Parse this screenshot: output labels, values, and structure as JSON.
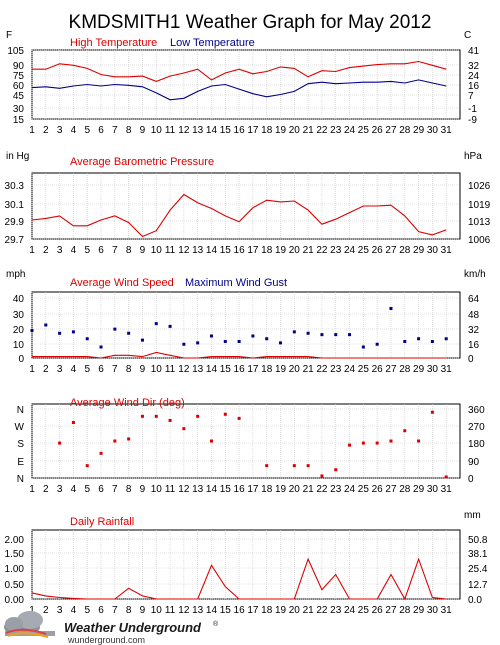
{
  "title": "KMDSMITH1 Weather Graph for May 2012",
  "footer": {
    "brand": "Weather Underground",
    "reg": "®",
    "site": "wunderground.com"
  },
  "days": [
    1,
    2,
    3,
    4,
    5,
    6,
    7,
    8,
    9,
    10,
    11,
    12,
    13,
    14,
    15,
    16,
    17,
    18,
    19,
    20,
    21,
    22,
    23,
    24,
    25,
    26,
    27,
    28,
    29,
    30,
    31
  ],
  "chart_data": [
    {
      "type": "line",
      "title": "",
      "left_unit": "F",
      "right_unit": "C",
      "yticks_left": [
        "105",
        "90",
        "75",
        "60",
        "45",
        "30",
        "15"
      ],
      "yticks_right": [
        "41",
        "32",
        "24",
        "16",
        "7",
        "-1",
        "-9"
      ],
      "ylim": [
        15,
        105
      ],
      "series": [
        {
          "name": "High Temperature",
          "color": "#dd0000",
          "values": [
            80,
            80,
            87,
            85,
            81,
            73,
            70,
            70,
            71,
            64,
            71,
            75,
            80,
            66,
            75,
            80,
            74,
            77,
            83,
            81,
            70,
            78,
            77,
            82,
            84,
            86,
            87,
            87,
            90,
            85,
            80
          ]
        },
        {
          "name": "Low Temperature",
          "color": "#000088",
          "values": [
            56,
            57,
            55,
            58,
            60,
            58,
            60,
            59,
            57,
            49,
            40,
            42,
            51,
            58,
            60,
            54,
            48,
            44,
            47,
            51,
            61,
            63,
            61,
            62,
            63,
            63,
            64,
            62,
            66,
            62,
            58
          ]
        }
      ]
    },
    {
      "type": "line",
      "title": "",
      "left_unit": "in Hg",
      "right_unit": "hPa",
      "yticks_left": [
        "30.3",
        "30.1",
        "29.9",
        "29.7"
      ],
      "yticks_right": [
        "1026",
        "1019",
        "1013",
        "1006"
      ],
      "ylim": [
        29.7,
        30.5
      ],
      "series": [
        {
          "name": "Average Barometric Pressure",
          "color": "#dd0000",
          "values": [
            29.93,
            29.95,
            29.98,
            29.86,
            29.86,
            29.93,
            29.98,
            29.9,
            29.73,
            29.8,
            30.05,
            30.24,
            30.14,
            30.07,
            29.98,
            29.91,
            30.08,
            30.17,
            30.15,
            30.16,
            30.05,
            29.88,
            29.94,
            30.02,
            30.1,
            30.1,
            30.11,
            29.98,
            29.79,
            29.75,
            29.81
          ]
        }
      ]
    },
    {
      "type": "scatter",
      "title": "",
      "left_unit": "mph",
      "right_unit": "km/h",
      "yticks_left": [
        "40",
        "30",
        "20",
        "10",
        "0"
      ],
      "yticks_right": [
        "64",
        "48",
        "32",
        "16",
        "0"
      ],
      "ylim": [
        0,
        48
      ],
      "series": [
        {
          "name": "Average Wind Speed",
          "color": "#dd0000",
          "style": "line",
          "values": [
            1,
            1,
            1,
            1,
            1,
            0,
            2,
            2,
            1,
            4,
            2,
            0,
            0,
            1,
            1,
            1,
            0,
            1,
            1,
            1,
            1,
            0,
            0,
            0,
            0,
            0,
            0,
            0,
            0,
            0,
            0
          ]
        },
        {
          "name": "Maximum Wind Gust",
          "color": "#000088",
          "style": "points",
          "values": [
            20,
            24,
            18,
            19,
            14,
            8,
            21,
            18,
            13,
            25,
            23,
            10,
            11,
            16,
            12,
            12,
            16,
            14,
            11,
            19,
            18,
            17,
            17,
            17,
            8,
            10,
            36,
            12,
            14,
            12,
            14
          ]
        }
      ]
    },
    {
      "type": "scatter",
      "title": "",
      "left_unit": "",
      "right_unit": "",
      "yticks_left": [
        "N",
        "W",
        "S",
        "E",
        "N"
      ],
      "yticks_right": [
        "360",
        "270",
        "180",
        "90",
        "0"
      ],
      "ylim": [
        0,
        360
      ],
      "series": [
        {
          "name": "Average Wind Dir (deg)",
          "color": "#dd0000",
          "style": "points",
          "values": [
            null,
            null,
            170,
            270,
            60,
            120,
            180,
            190,
            300,
            300,
            280,
            240,
            300,
            180,
            310,
            290,
            null,
            60,
            null,
            60,
            60,
            10,
            40,
            160,
            170,
            170,
            180,
            230,
            180,
            320,
            5
          ]
        }
      ]
    },
    {
      "type": "line",
      "title": "",
      "left_unit": "",
      "right_unit": "mm",
      "yticks_left": [
        "2.00",
        "1.50",
        "1.00",
        "0.50",
        "0.00"
      ],
      "yticks_right": [
        "50.8",
        "38.1",
        "25.4",
        "12.7",
        "0.0"
      ],
      "ylim": [
        0,
        2.25
      ],
      "series": [
        {
          "name": "Daily Rainfall",
          "color": "#dd0000",
          "values": [
            0.2,
            0.1,
            0.05,
            0.02,
            0,
            0,
            0,
            0.35,
            0.1,
            0,
            0,
            0,
            0,
            1.1,
            0.4,
            0,
            0,
            0,
            0,
            0,
            1.3,
            0.3,
            0.8,
            0,
            0,
            0,
            0.8,
            0,
            1.3,
            0.05,
            0
          ]
        }
      ]
    }
  ]
}
